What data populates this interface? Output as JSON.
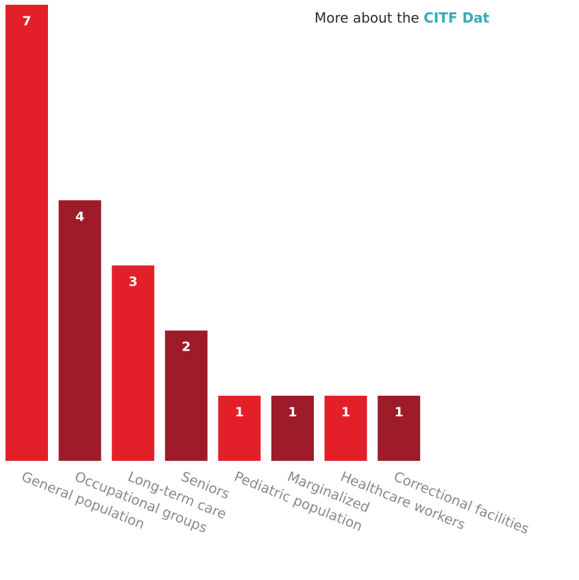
{
  "header": {
    "prefix": "More about the ",
    "link_text": "CITF Dat"
  },
  "colors": {
    "bright_red": "#e3202a",
    "dark_red": "#9e1b2a",
    "link": "#3aa9b5",
    "label_gray": "#8a8a8a"
  },
  "chart_data": {
    "type": "bar",
    "categories": [
      "General population",
      "Occupational groups",
      "Long-term care",
      "Seniors",
      "Pediatric population",
      "Marginalized",
      "Healthcare workers",
      "Correctional facilities"
    ],
    "values": [
      7,
      4,
      3,
      2,
      1,
      1,
      1,
      1
    ],
    "bar_colors": [
      "#e3202a",
      "#9e1b2a",
      "#e3202a",
      "#9e1b2a",
      "#e3202a",
      "#9e1b2a",
      "#e3202a",
      "#9e1b2a"
    ],
    "title": "",
    "xlabel": "",
    "ylabel": "",
    "ylim": [
      0,
      7
    ],
    "grid": false,
    "legend": "none"
  }
}
